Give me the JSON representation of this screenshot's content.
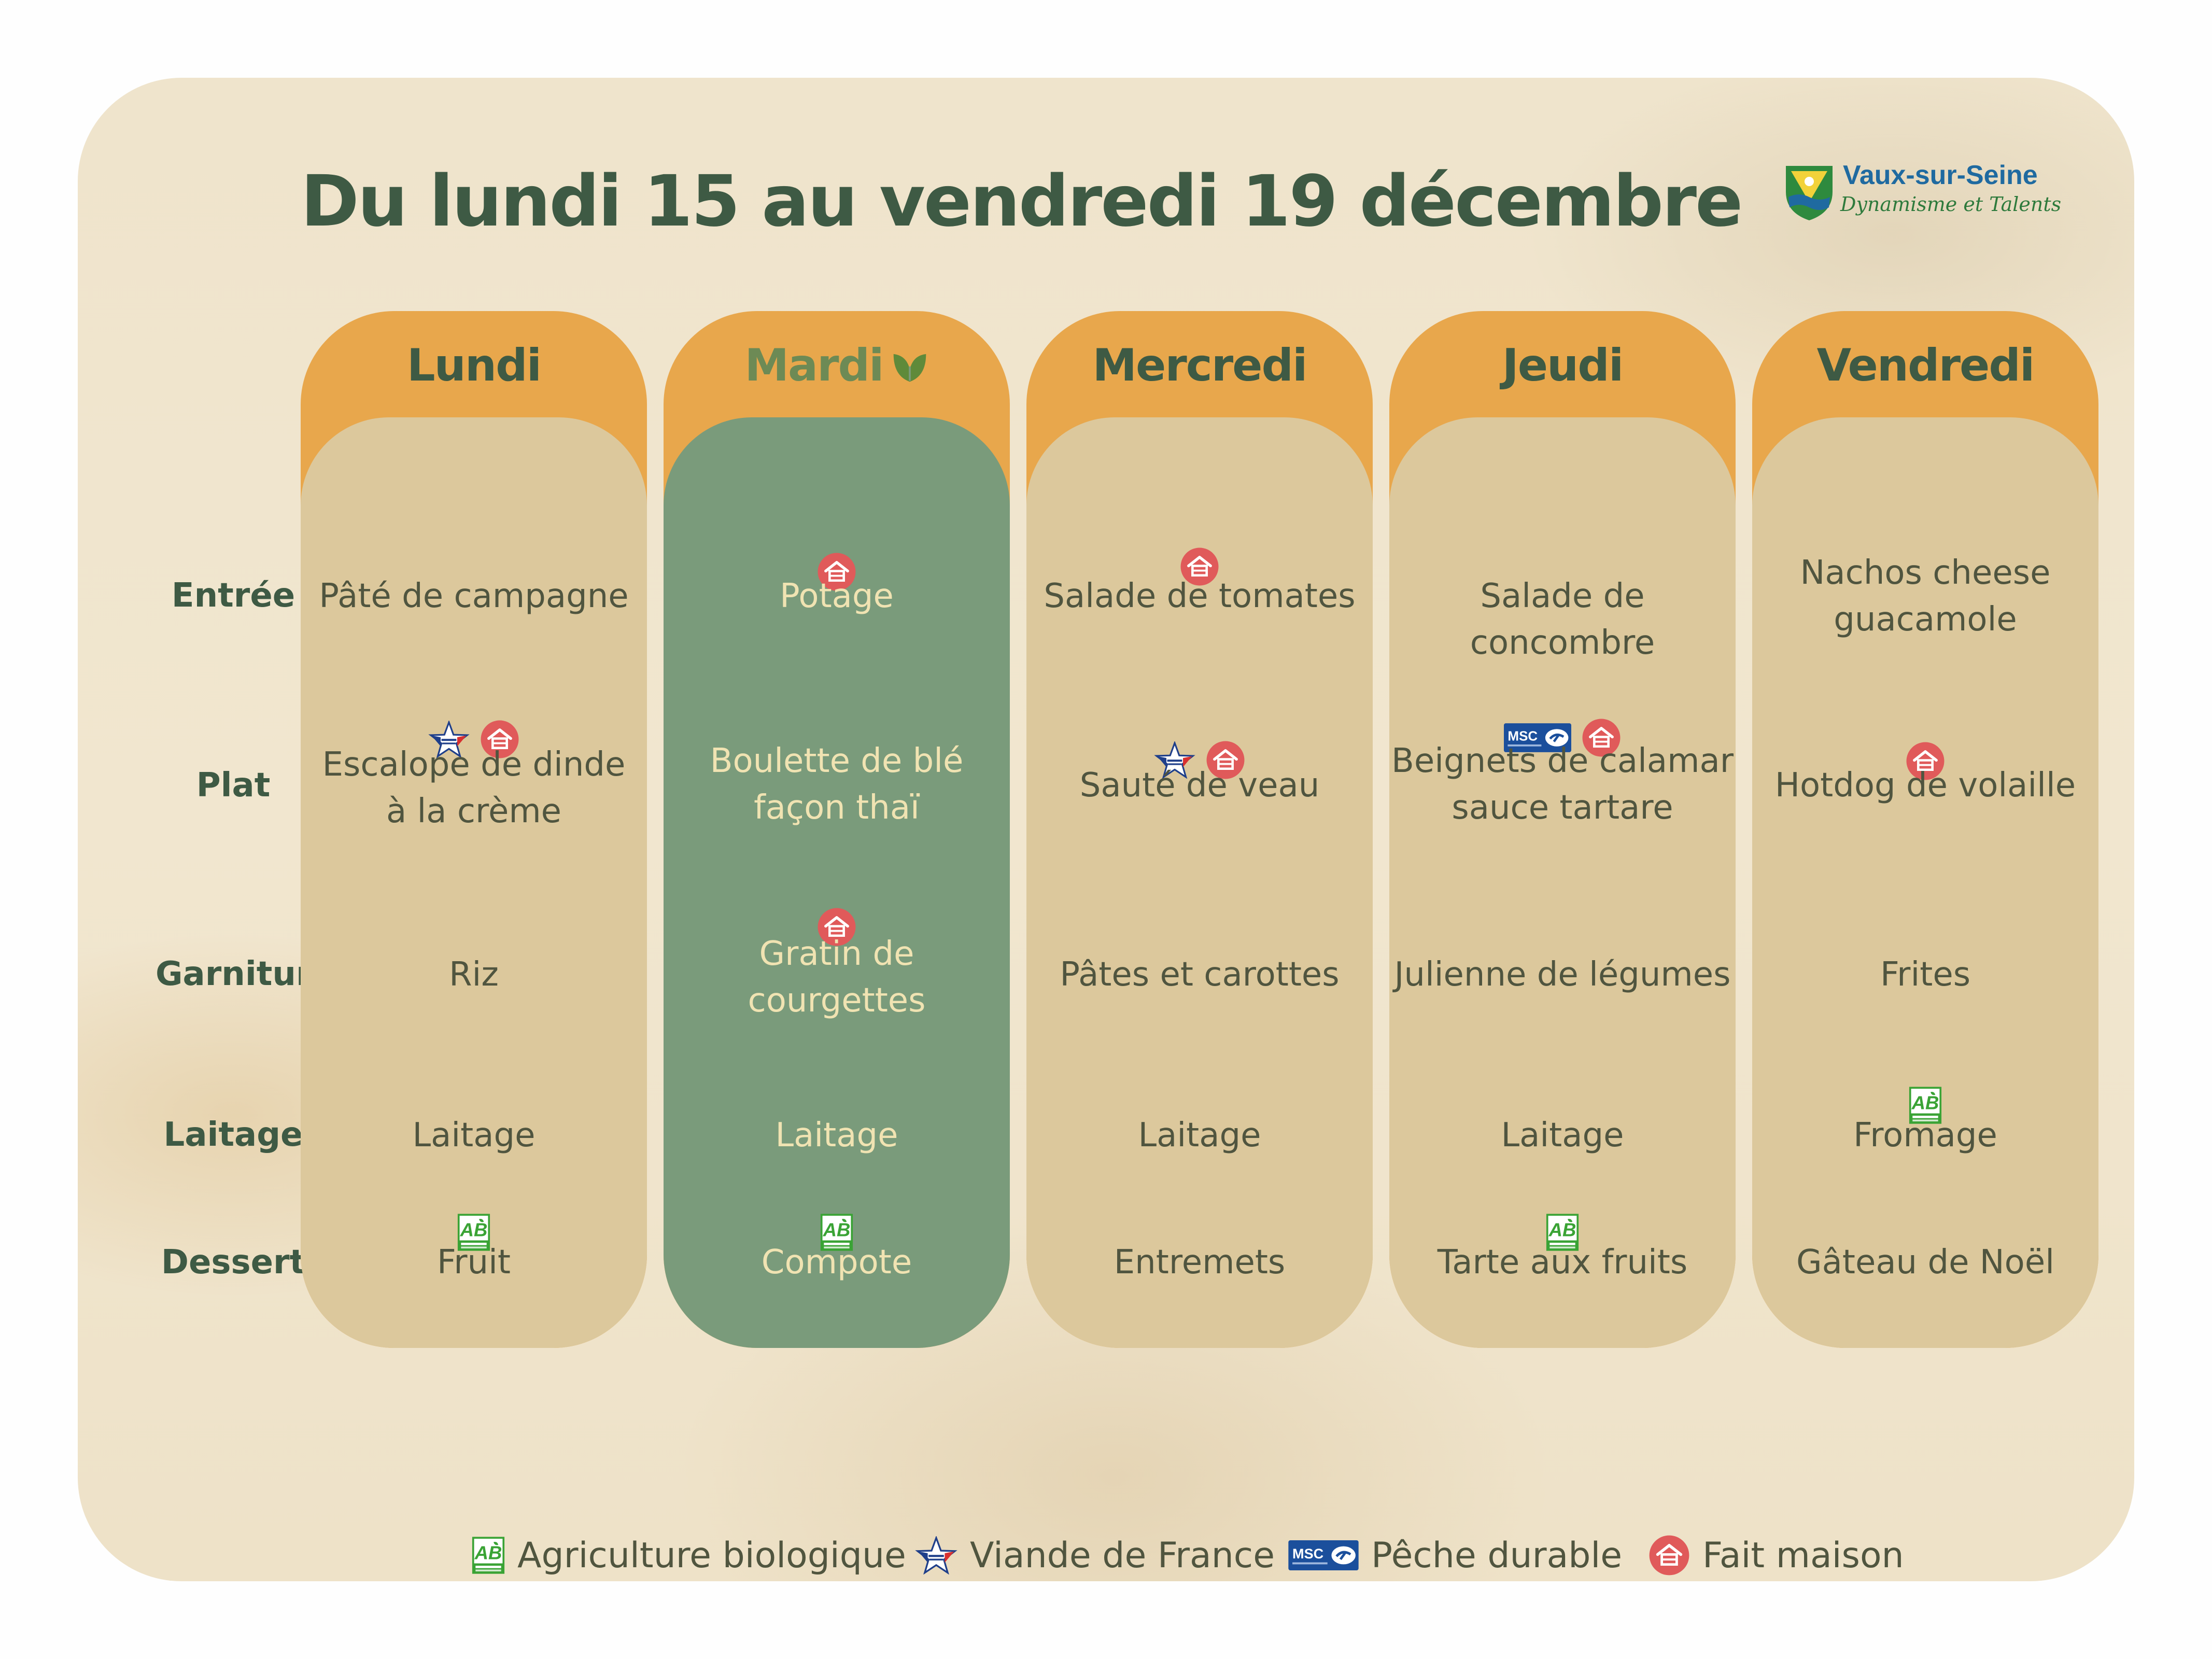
{
  "title": "Du lundi 15 au vendredi 19 décembre",
  "logo": {
    "name": "Vaux-sur-Seine",
    "slogan": "Dynamisme et Talents"
  },
  "rows": [
    "Entrée",
    "Plat",
    "Garniture",
    "Laitage",
    "Dessert"
  ],
  "days": [
    {
      "name": "Lundi",
      "entree": "Pâté de campagne",
      "plat_line1": "Escalope de dinde",
      "plat_line2": "à la crème",
      "garniture": "Riz",
      "laitage": "Laitage",
      "dessert": "Fruit",
      "labels": {
        "plat": [
          "viande-de-france",
          "fait-maison"
        ],
        "dessert": [
          "agriculture-biologique"
        ]
      }
    },
    {
      "name": "Mardi",
      "vegetarian_icon": "leaf-icon",
      "entree": "Potage",
      "plat_line1": "Boulette de blé",
      "plat_line2": "façon thaï",
      "garniture_line1": "Gratin de",
      "garniture_line2": "courgettes",
      "laitage": "Laitage",
      "dessert": "Compote",
      "labels": {
        "entree": [
          "fait-maison"
        ],
        "garniture": [
          "fait-maison"
        ],
        "dessert": [
          "agriculture-biologique"
        ]
      }
    },
    {
      "name": "Mercredi",
      "entree": "Salade de tomates",
      "plat": "Sauté de veau",
      "garniture": "Pâtes et carottes",
      "laitage": "Laitage",
      "dessert": "Entremets",
      "labels": {
        "entree": [
          "fait-maison"
        ],
        "plat": [
          "viande-de-france",
          "fait-maison"
        ]
      }
    },
    {
      "name": "Jeudi",
      "entree": "Salade de concombre",
      "plat_line1": "Beignets de calamar",
      "plat_line2": "sauce tartare",
      "garniture": "Julienne de légumes",
      "laitage": "Laitage",
      "dessert": "Tarte aux fruits",
      "labels": {
        "plat": [
          "peche-durable",
          "fait-maison"
        ],
        "dessert": [
          "agriculture-biologique"
        ]
      }
    },
    {
      "name": "Vendredi",
      "entree_line1": "Nachos cheese",
      "entree_line2": "guacamole",
      "plat": "Hotdog de volaille",
      "garniture": "Frites",
      "laitage": "Fromage",
      "dessert": "Gâteau de Noël",
      "labels": {
        "plat": [
          "fait-maison"
        ],
        "laitage": [
          "agriculture-biologique"
        ]
      }
    }
  ],
  "legend": [
    {
      "icon": "agriculture-biologique",
      "label": "Agriculture biologique"
    },
    {
      "icon": "viande-de-france",
      "label": "Viande de France"
    },
    {
      "icon": "peche-durable",
      "label": "Pêche durable"
    },
    {
      "icon": "fait-maison",
      "label": "Fait maison"
    }
  ],
  "colors": {
    "header_orange": "#e8a74c",
    "column_beige": "#dcc89c",
    "column_green": "#7a9b7b",
    "title_green": "#3e5a44",
    "fait_maison_red": "#e05a5a",
    "ab_green": "#3aa335",
    "msc_blue": "#1b4f9c"
  }
}
